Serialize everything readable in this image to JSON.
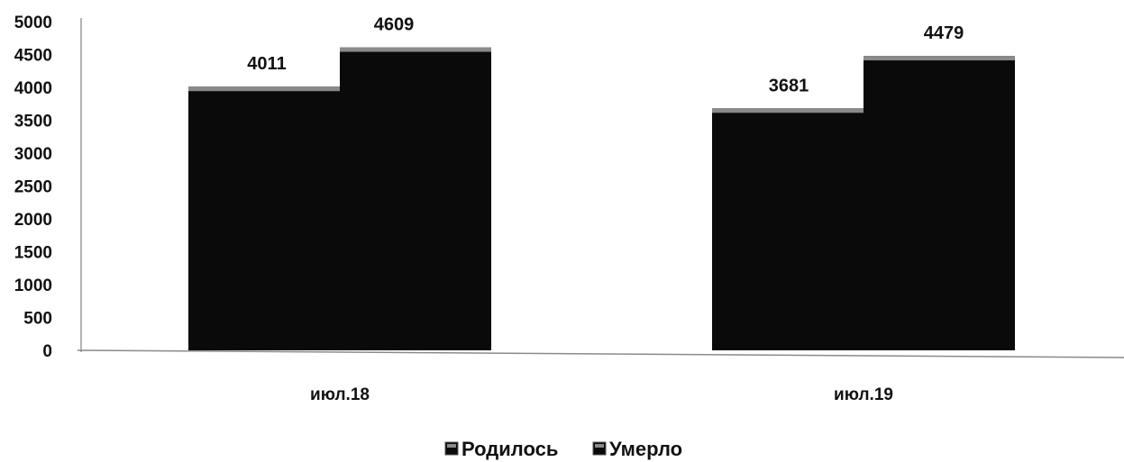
{
  "chart_data": {
    "type": "bar",
    "title": "",
    "xlabel": "",
    "ylabel": "",
    "categories": [
      "июл.18",
      "июл.19"
    ],
    "series": [
      {
        "name": "Родилось",
        "values": [
          4011,
          3681
        ],
        "color": "#0a0a0a",
        "top_color": "#8a8a8a"
      },
      {
        "name": "Умерло",
        "values": [
          4609,
          4479
        ],
        "color": "#0a0a0a",
        "top_color": "#8a8a8a"
      }
    ],
    "ylim": [
      0,
      5000
    ],
    "yticks": [
      0,
      500,
      1000,
      1500,
      2000,
      2500,
      3000,
      3500,
      4000,
      4500,
      5000
    ],
    "grid": false,
    "legend_position": "bottom"
  }
}
